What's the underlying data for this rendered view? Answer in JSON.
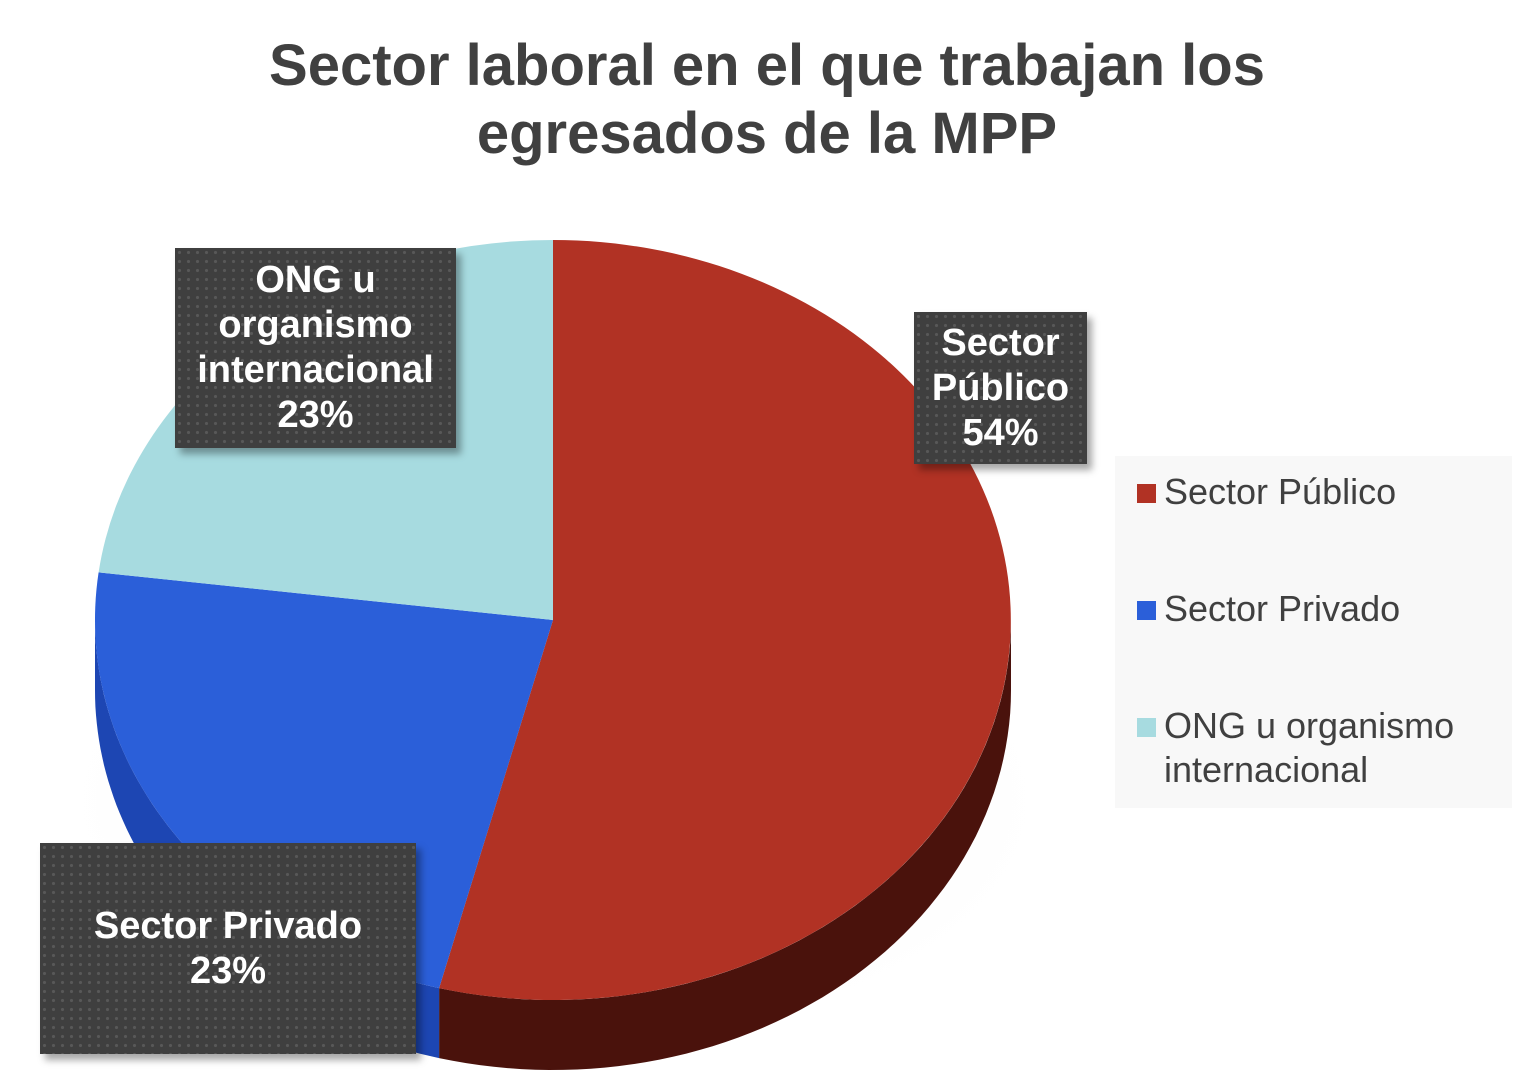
{
  "chart_data": {
    "type": "pie",
    "title_lines": [
      "Sector laboral en el que trabajan los",
      "egresados de la MPP"
    ],
    "slices": [
      {
        "label": "Sector Público",
        "value": 54,
        "color": "#b13224",
        "side_color": "#4a120c"
      },
      {
        "label": "Sector Privado",
        "value": 23,
        "color": "#2b5fd9",
        "side_color": "#1d46b3"
      },
      {
        "label": "ONG u organismo internacional",
        "value": 23,
        "color": "#a7dbe0",
        "side_color": "#7fb8bf"
      }
    ],
    "data_labels": {
      "publico": {
        "lines": [
          "Sector",
          "Público",
          "54%"
        ]
      },
      "privado": {
        "lines": [
          "Sector Privado",
          "23%"
        ]
      },
      "ong": {
        "lines": [
          "ONG u",
          "organismo",
          "internacional",
          "23%"
        ]
      }
    },
    "legend": {
      "position": "right",
      "items": [
        {
          "lines": [
            "Sector Público"
          ],
          "color": "#b13224"
        },
        {
          "lines": [
            "Sector Privado"
          ],
          "color": "#2b5fd9"
        },
        {
          "lines": [
            "ONG u organismo",
            "internacional"
          ],
          "color": "#a7dbe0"
        }
      ]
    }
  }
}
